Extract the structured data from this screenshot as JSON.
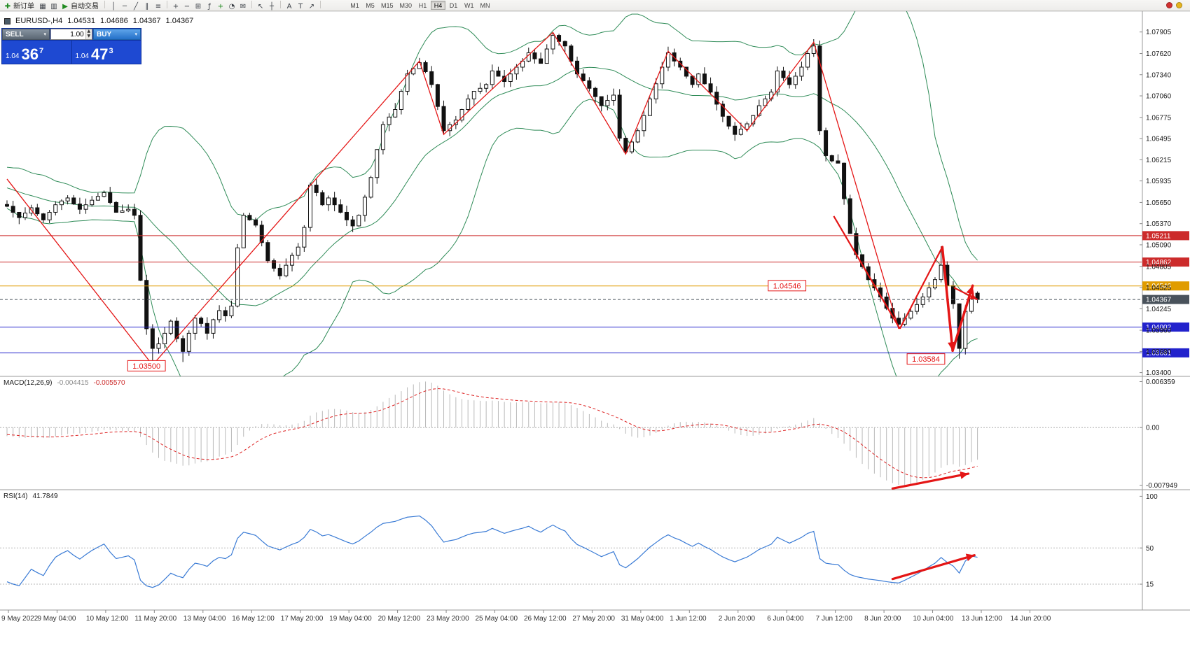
{
  "toolbar": {
    "items": [
      {
        "name": "new-order-icon",
        "glyph": "✚",
        "color": "#1f8a1f",
        "label": "新订单"
      },
      {
        "name": "charts-window-icon",
        "glyph": "▦"
      },
      {
        "name": "profiles-icon",
        "glyph": "▥"
      },
      {
        "name": "autotrading-icon",
        "glyph": "▶",
        "color": "#1f8a1f",
        "label": "自动交易"
      },
      {
        "sep": true
      },
      {
        "name": "vertical-line-icon",
        "glyph": "│"
      },
      {
        "name": "horizontal-line-icon",
        "glyph": "─"
      },
      {
        "name": "trendline-icon",
        "glyph": "╱"
      },
      {
        "name": "equidistant-channel-icon",
        "glyph": "∥"
      },
      {
        "name": "fibonacci-retracement-icon",
        "glyph": "≡"
      },
      {
        "sep": true
      },
      {
        "name": "zoom-in-icon",
        "glyph": "+"
      },
      {
        "name": "zoom-out-icon",
        "glyph": "−"
      },
      {
        "name": "tile-windows-icon",
        "glyph": "⊞"
      },
      {
        "name": "indicators-list-icon",
        "glyph": "ƒ"
      },
      {
        "name": "add-indicator-icon",
        "glyph": "+",
        "color": "#1f8a1f"
      },
      {
        "name": "periods-icon",
        "glyph": "◔"
      },
      {
        "name": "mail-icon",
        "glyph": "✉"
      },
      {
        "sep": true
      },
      {
        "name": "cursor-icon",
        "glyph": "↖"
      },
      {
        "name": "crosshair-icon",
        "glyph": "┼"
      },
      {
        "sep": true
      },
      {
        "name": "text-icon",
        "glyph": "A"
      },
      {
        "name": "text-label-icon",
        "glyph": "T"
      },
      {
        "name": "arrow-tools-icon",
        "glyph": "↗"
      },
      {
        "sep": true
      }
    ],
    "timeframes": [
      "M1",
      "M5",
      "M15",
      "M30",
      "H1",
      "H4",
      "D1",
      "W1",
      "MN"
    ],
    "active_timeframe": "H4",
    "right_items": [
      {
        "name": "alert-status-icon",
        "color": "#d23030"
      },
      {
        "name": "news-status-icon",
        "color": "#e6b41e"
      }
    ]
  },
  "chart_header": {
    "symbol": "EURUSD-,H4",
    "open": "1.04531",
    "high": "1.04686",
    "low": "1.04367",
    "close": "1.04367"
  },
  "trade_panel": {
    "sell_label": "SELL",
    "buy_label": "BUY",
    "volume": "1.00",
    "sell_price_prefix": "1.04",
    "sell_price_big": "36",
    "sell_price_sup": "7",
    "buy_price_prefix": "1.04",
    "buy_price_big": "47",
    "buy_price_sup": "3"
  },
  "macd": {
    "label": "MACD(12,26,9)",
    "value_main": "-0.004415",
    "value_signal": "-0.005570",
    "axis_labels": [
      "0.006359",
      "0.00",
      "-0.007949"
    ]
  },
  "rsi": {
    "label": "RSI(14)",
    "value": "41.7849",
    "axis_labels": [
      "100",
      "50",
      "15"
    ],
    "levels": [
      50,
      15
    ]
  },
  "time_labels": [
    "9 May 2022",
    "9 May 04:00",
    "10 May 12:00",
    "11 May 20:00",
    "13 May 04:00",
    "16 May 12:00",
    "17 May 20:00",
    "19 May 04:00",
    "20 May 12:00",
    "23 May 20:00",
    "25 May 04:00",
    "26 May 12:00",
    "27 May 20:00",
    "31 May 04:00",
    "1 Jun 12:00",
    "2 Jun 20:00",
    "6 Jun 04:00",
    "7 Jun 12:00",
    "8 Jun 20:00",
    "10 Jun 04:00",
    "13 Jun 12:00",
    "14 Jun 20:00"
  ],
  "chart_data": {
    "type": "candlestick",
    "symbol": "EURUSD",
    "timeframe": "H4",
    "num_candles": 161,
    "ylim": [
      1.0335,
      1.0818
    ],
    "price_ticks": [
      1.07905,
      1.0762,
      1.0734,
      1.0706,
      1.06775,
      1.06495,
      1.06215,
      1.05935,
      1.0565,
      1.0537,
      1.0509,
      1.04805,
      1.04525,
      1.04245,
      1.0396,
      1.0368,
      1.034
    ],
    "closes": [
      1.056,
      1.0552,
      1.0545,
      1.0551,
      1.0558,
      1.055,
      1.0542,
      1.0552,
      1.0562,
      1.0567,
      1.0571,
      1.0563,
      1.0556,
      1.0562,
      1.0568,
      1.0573,
      1.0578,
      1.0565,
      1.0552,
      1.0554,
      1.0556,
      1.0548,
      1.0462,
      1.0398,
      1.0372,
      1.0378,
      1.0392,
      1.0408,
      1.0385,
      1.0368,
      1.0392,
      1.0412,
      1.0405,
      1.0392,
      1.041,
      1.0422,
      1.0415,
      1.0428,
      1.0505,
      1.0548,
      1.0542,
      1.0535,
      1.0512,
      1.0488,
      1.0478,
      1.0468,
      1.0482,
      1.0495,
      1.0506,
      1.0532,
      1.0588,
      1.0578,
      1.0562,
      1.0571,
      1.0562,
      1.0552,
      1.0542,
      1.0534,
      1.0548,
      1.0572,
      1.0598,
      1.0635,
      1.0668,
      1.0678,
      1.0688,
      1.0712,
      1.0735,
      1.0742,
      1.075,
      1.0738,
      1.0721,
      1.0692,
      1.066,
      1.0668,
      1.0674,
      1.0688,
      1.0702,
      1.0712,
      1.0716,
      1.0721,
      1.0739,
      1.0732,
      1.0725,
      1.0735,
      1.0744,
      1.0752,
      1.0763,
      1.0755,
      1.0749,
      1.0768,
      1.0786,
      1.0778,
      1.0772,
      1.0752,
      1.0735,
      1.0726,
      1.0716,
      1.0705,
      1.0693,
      1.07,
      1.0707,
      1.065,
      1.0632,
      1.0645,
      1.066,
      1.068,
      1.0702,
      1.0722,
      1.0744,
      1.0763,
      1.0752,
      1.0744,
      1.0732,
      1.0721,
      1.0735,
      1.0722,
      1.0711,
      1.0695,
      1.0679,
      1.0666,
      1.0655,
      1.0662,
      1.0669,
      1.068,
      1.0693,
      1.0702,
      1.0711,
      1.0739,
      1.073,
      1.0721,
      1.0732,
      1.0744,
      1.0762,
      1.0772,
      1.066,
      1.0627,
      1.062,
      1.0617,
      1.057,
      1.0524,
      1.0496,
      1.048,
      1.0463,
      1.0452,
      1.044,
      1.0425,
      1.0412,
      1.0404,
      1.0412,
      1.0421,
      1.043,
      1.044,
      1.0452,
      1.0463,
      1.0482,
      1.0455,
      1.0431,
      1.0372,
      1.0421,
      1.0445,
      1.04367
    ],
    "forced": {
      "last_close": 1.04367,
      "lows": [
        [
          24,
          1.035
        ],
        [
          29,
          1.0354
        ],
        [
          147,
          1.04
        ],
        [
          157,
          1.03584
        ]
      ],
      "highs": [
        [
          90,
          1.0789
        ],
        [
          133,
          1.0781
        ],
        [
          154,
          1.0507
        ]
      ]
    },
    "indicators": {
      "bollinger": {
        "period": 20,
        "deviation": 2
      },
      "macd": {
        "fast": 12,
        "slow": 26,
        "signal": 9
      },
      "rsi": {
        "period": 14
      }
    },
    "macd_ylim": [
      -0.007949,
      0.006359
    ],
    "hlines": [
      {
        "price": 1.05211,
        "label": "1.05211",
        "color": "#cc2b2b"
      },
      {
        "price": 1.04862,
        "label": "1.04862",
        "color": "#cc2b2b"
      },
      {
        "price": 1.04546,
        "label": "1.04546",
        "color": "#e09c00"
      },
      {
        "price": 1.04367,
        "label": "1.04367",
        "color": "#49525b",
        "dash": true
      },
      {
        "price": 1.04002,
        "label": "1.04002",
        "color": "#2222cc"
      },
      {
        "price": 1.03661,
        "label": "1.03661",
        "color": "#2222cc"
      }
    ],
    "zigzag": [
      [
        0,
        1.0596
      ],
      [
        24,
        1.035
      ],
      [
        68,
        1.0752
      ],
      [
        72,
        1.0655
      ],
      [
        90,
        1.079
      ],
      [
        102,
        1.0629
      ],
      [
        109,
        1.0765
      ],
      [
        122,
        1.066
      ],
      [
        133,
        1.0777
      ],
      [
        147,
        1.0398
      ]
    ],
    "pattern_lines": [
      {
        "pts": [
          [
            136.3,
            1.0547
          ],
          [
            147.2,
            1.0398
          ]
        ],
        "width": 2.2
      },
      {
        "pts": [
          [
            147.2,
            1.0398
          ],
          [
            154.2,
            1.0506
          ]
        ],
        "width": 2.2
      }
    ],
    "arrows_main": [
      {
        "from": [
          154.2,
          1.0506
        ],
        "to": [
          155.9,
          1.0369
        ],
        "width": 3.5
      },
      {
        "from": [
          155.9,
          1.0369
        ],
        "to": [
          159.2,
          1.0455
        ],
        "width": 3.5
      },
      {
        "from": [
          156.2,
          1.0452
        ],
        "to": [
          159.9,
          1.0437
        ],
        "width": 2.2
      }
    ],
    "arrow_macd": {
      "from": [
        146,
        -0.0078
      ],
      "to": [
        158.5,
        -0.0059
      ],
      "width": 3.2
    },
    "arrow_rsi": {
      "from": [
        146,
        20
      ],
      "to": [
        159.5,
        43
      ],
      "width": 3.2
    },
    "annotations": [
      {
        "text": "1.03500",
        "i": 23,
        "p": 1.0349
      },
      {
        "text": "1.04546",
        "i": 128.6,
        "p": 1.0455
      },
      {
        "text": "1.03584",
        "i": 151.5,
        "p": 1.0358
      }
    ],
    "colors": {
      "bull": "#ffffff",
      "bear": "#111111",
      "outline": "#111111",
      "bollinger": "#2e8b57",
      "zigzag": "#e41616",
      "annotation": "#e41616",
      "macd_hist": "#b9b9b9",
      "macd_signal": "#dd2222",
      "rsi_line": "#3a7bd5"
    }
  }
}
